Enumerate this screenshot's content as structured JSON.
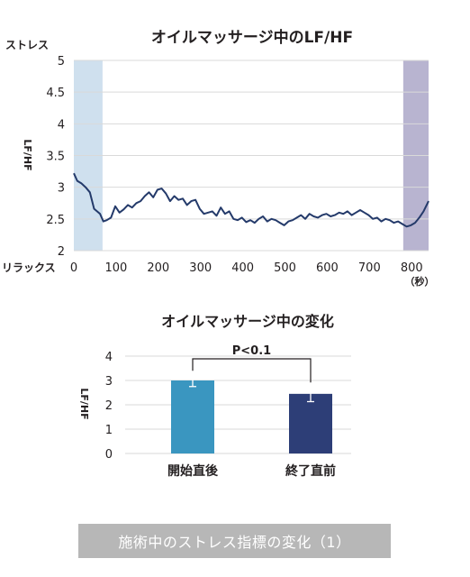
{
  "chart_data": [
    {
      "type": "line",
      "title": "オイルマッサージ中のLF/HF",
      "ylabel": "LF/HF",
      "y_top_label": "ストレス",
      "y_bottom_label": "リラックス",
      "x_unit_label": "（秒）",
      "ylim": [
        2,
        5
      ],
      "xlim": [
        0,
        840
      ],
      "yticks": [
        "5",
        "4.5",
        "4",
        "3.5",
        "3",
        "2.5",
        "2"
      ],
      "xticks": [
        "0",
        "100",
        "200",
        "300",
        "400",
        "500",
        "600",
        "700",
        "800"
      ],
      "shaded_regions": [
        {
          "x": [
            0,
            68
          ],
          "color": "#cfe0ee"
        },
        {
          "x": [
            780,
            840
          ],
          "color": "#b8b4d0"
        }
      ],
      "line_color": "#243a6a",
      "series": [
        {
          "x": [
            0,
            8,
            18,
            28,
            38,
            48,
            55,
            62,
            70,
            78,
            88,
            98,
            108,
            118,
            128,
            138,
            148,
            158,
            168,
            178,
            188,
            198,
            208,
            218,
            228,
            238,
            248,
            258,
            268,
            278,
            288,
            298,
            308,
            318,
            328,
            338,
            348,
            358,
            368,
            378,
            388,
            398,
            408,
            418,
            428,
            438,
            448,
            458,
            468,
            478,
            488,
            498,
            508,
            518,
            528,
            538,
            548,
            558,
            568,
            578,
            588,
            598,
            608,
            618,
            628,
            638,
            648,
            658,
            668,
            678,
            688,
            698,
            708,
            718,
            728,
            738,
            748,
            758,
            768,
            778,
            788,
            798,
            808,
            818,
            828,
            840
          ],
          "y": [
            3.22,
            3.1,
            3.06,
            3.0,
            2.92,
            2.66,
            2.62,
            2.58,
            2.46,
            2.48,
            2.52,
            2.7,
            2.6,
            2.65,
            2.72,
            2.68,
            2.75,
            2.78,
            2.86,
            2.92,
            2.84,
            2.96,
            2.98,
            2.9,
            2.78,
            2.86,
            2.8,
            2.82,
            2.72,
            2.78,
            2.8,
            2.66,
            2.58,
            2.6,
            2.62,
            2.55,
            2.68,
            2.58,
            2.62,
            2.5,
            2.48,
            2.52,
            2.45,
            2.48,
            2.44,
            2.5,
            2.54,
            2.46,
            2.5,
            2.48,
            2.44,
            2.4,
            2.46,
            2.48,
            2.52,
            2.56,
            2.5,
            2.58,
            2.54,
            2.52,
            2.56,
            2.58,
            2.54,
            2.56,
            2.6,
            2.58,
            2.62,
            2.56,
            2.6,
            2.64,
            2.6,
            2.56,
            2.5,
            2.52,
            2.46,
            2.5,
            2.48,
            2.44,
            2.46,
            2.42,
            2.38,
            2.4,
            2.44,
            2.52,
            2.62,
            2.78
          ]
        }
      ]
    },
    {
      "type": "bar",
      "title": "オイルマッサージ中の変化",
      "ylabel": "LF/HF",
      "ylim": [
        0,
        4
      ],
      "yticks": [
        "4",
        "3",
        "2",
        "1",
        "0"
      ],
      "categories": [
        "開始直後",
        "終了直前"
      ],
      "values": [
        3.0,
        2.45
      ],
      "errors": [
        0.25,
        0.32
      ],
      "colors": [
        "#3a96c0",
        "#2d3e77"
      ],
      "significance": "P<0.1"
    }
  ],
  "caption": "施術中のストレス指標の変化（1）"
}
